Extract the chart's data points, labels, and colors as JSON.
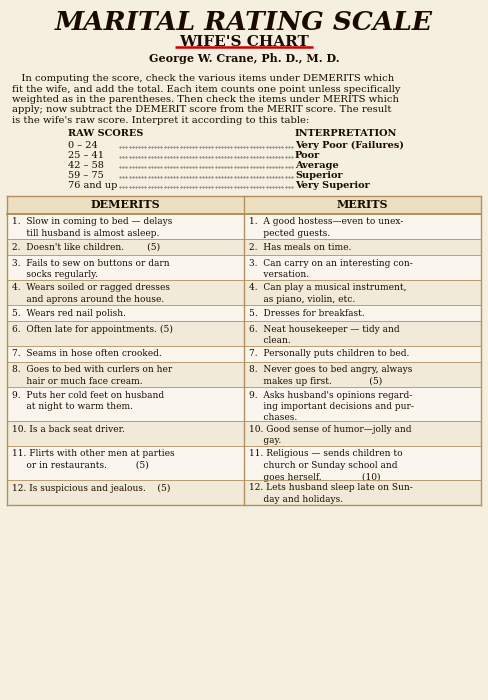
{
  "title": "MARITAL RATING SCALE",
  "subtitle": "WIFE'S CHART",
  "author": "George W. Crane, Ph. D., M. D.",
  "bg_color": "#f5efe0",
  "intro_text": "In computing the score, check the various items under DEMERITS which fit the wife, and add the total. Each item counts one point unless specifically weighted as in the parentheses. Then check the items under MERITS which apply; now subtract the DEMERIT score from the MERIT score. The result is the wife's raw score. Interpret it according to this table:",
  "raw_scores_label": "RAW SCORES",
  "interpretation_label": "INTERPRETATION",
  "score_rows": [
    [
      "0 – 24",
      "Very Poor (Failures)"
    ],
    [
      "25 – 41",
      "Poor"
    ],
    [
      "42 – 58",
      "Average"
    ],
    [
      "59 – 75",
      "Superior"
    ],
    [
      "76 and up",
      "Very Superior"
    ]
  ],
  "col_headers": [
    "DEMERITS",
    "MERITS"
  ],
  "demerits": [
    "1.  Slow in coming to bed — delays\n     till husband is almost asleep.",
    "2.  Doesn't like children.        (5)",
    "3.  Fails to sew on buttons or darn\n     socks regularly.",
    "4.  Wears soiled or ragged dresses\n     and aprons around the house.",
    "5.  Wears red nail polish.",
    "6.  Often late for appointments. (5)",
    "7.  Seams in hose often crooked.",
    "8.  Goes to bed with curlers on her\n     hair or much face cream.",
    "9.  Puts her cold feet on husband\n     at night to warm them.",
    "10. Is a back seat driver.",
    "11. Flirts with other men at parties\n     or in restaurants.          (5)",
    "12. Is suspicious and jealous.    (5)"
  ],
  "merits": [
    "1.  A good hostess—even to unex-\n     pected guests.",
    "2.  Has meals on time.",
    "3.  Can carry on an interesting con-\n     versation.",
    "4.  Can play a musical instrument,\n     as piano, violin, etc.",
    "5.  Dresses for breakfast.",
    "6.  Neat housekeeper — tidy and\n     clean.",
    "7.  Personally puts children to bed.",
    "8.  Never goes to bed angry, always\n     makes up first.             (5)",
    "9.  Asks husband's opinions regard-\n     ing important decisions and pur-\n     chases.",
    "10. Good sense of humor—jolly and\n     gay.",
    "11. Religious — sends children to\n     church or Sunday school and\n     goes herself.              (10)",
    "12. Lets husband sleep late on Sun-\n     day and holidays."
  ],
  "header_color": "#ede0c0",
  "row_color_odd": "#faf6ee",
  "row_color_even": "#f2ead8",
  "border_color": "#b09060",
  "text_color": "#1a0a00",
  "title_fontsize": 19,
  "subtitle_fontsize": 11,
  "author_fontsize": 8,
  "intro_fontsize": 7.2,
  "score_fontsize": 7.0,
  "header_fontsize": 8,
  "cell_fontsize": 6.5
}
